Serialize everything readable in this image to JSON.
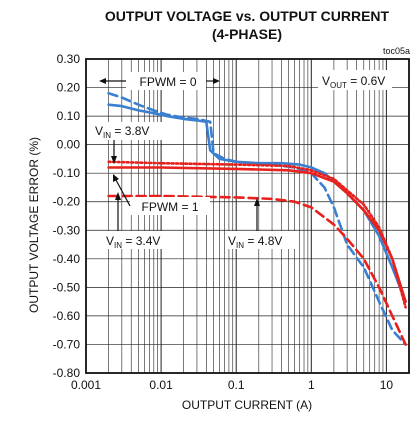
{
  "chart_data": {
    "type": "line",
    "title": "OUTPUT VOLTAGE vs. OUTPUT CURRENT",
    "subtitle": "(4-PHASE)",
    "figure_code": "toc05a",
    "xlabel": "OUTPUT CURRENT  (A)",
    "ylabel": "OUTPUT VOLTAGE  ERROR  (%)",
    "x_scale": "log",
    "xlim": [
      0.001,
      20
    ],
    "ylim": [
      -0.8,
      0.3
    ],
    "x_ticks": [
      {
        "value": 0.001,
        "label": "0.001"
      },
      {
        "value": 0.01,
        "label": "0.01"
      },
      {
        "value": 0.1,
        "label": "0.1"
      },
      {
        "value": 1,
        "label": "1"
      },
      {
        "value": 10,
        "label": "10"
      }
    ],
    "y_ticks": [
      {
        "value": 0.3,
        "label": "0.30"
      },
      {
        "value": 0.2,
        "label": "0.20"
      },
      {
        "value": 0.1,
        "label": "0.10"
      },
      {
        "value": 0.0,
        "label": "0.00"
      },
      {
        "value": -0.1,
        "label": "-0.10"
      },
      {
        "value": -0.2,
        "label": "-0.20"
      },
      {
        "value": -0.3,
        "label": "-0.30"
      },
      {
        "value": -0.4,
        "label": "-0.40"
      },
      {
        "value": -0.5,
        "label": "-0.50"
      },
      {
        "value": -0.6,
        "label": "-0.60"
      },
      {
        "value": -0.7,
        "label": "-0.70"
      },
      {
        "value": -0.8,
        "label": "-0.80"
      }
    ],
    "grid": true,
    "colors": {
      "blue": "#3a7fd0",
      "red": "#e8211c"
    },
    "annotations": {
      "fpwm0": "FPWM = 0",
      "fpwm1": "FPWM = 1",
      "vout": {
        "main": "V",
        "sub": "OUT",
        "rest": " = 0.6V"
      },
      "vin38": {
        "main": "V",
        "sub": "IN",
        "rest": " = 3.8V"
      },
      "vin34": {
        "main": "V",
        "sub": "IN",
        "rest": " = 3.4V"
      },
      "vin48": {
        "main": "V",
        "sub": "IN",
        "rest": " = 4.8V"
      }
    },
    "series": [
      {
        "color": "#3a7fd0",
        "dash": "solid",
        "points": [
          [
            0.002,
            0.14
          ],
          [
            0.003,
            0.135
          ],
          [
            0.005,
            0.12
          ],
          [
            0.008,
            0.11
          ],
          [
            0.012,
            0.1
          ],
          [
            0.02,
            0.09
          ],
          [
            0.03,
            0.085
          ],
          [
            0.04,
            0.08
          ],
          [
            0.045,
            -0.02
          ],
          [
            0.06,
            -0.05
          ],
          [
            0.1,
            -0.06
          ],
          [
            0.2,
            -0.065
          ],
          [
            0.4,
            -0.065
          ],
          [
            0.7,
            -0.07
          ],
          [
            1.0,
            -0.08
          ],
          [
            1.5,
            -0.1
          ],
          [
            2.0,
            -0.13
          ],
          [
            3.0,
            -0.17
          ],
          [
            5.0,
            -0.23
          ],
          [
            8.0,
            -0.32
          ],
          [
            12.0,
            -0.43
          ],
          [
            18.0,
            -0.55
          ]
        ]
      },
      {
        "color": "#3a7fd0",
        "dash": "dashed",
        "points": [
          [
            0.002,
            0.18
          ],
          [
            0.003,
            0.165
          ],
          [
            0.005,
            0.14
          ],
          [
            0.008,
            0.12
          ],
          [
            0.012,
            0.105
          ],
          [
            0.02,
            0.095
          ],
          [
            0.03,
            0.09
          ],
          [
            0.045,
            0.08
          ],
          [
            0.05,
            -0.03
          ],
          [
            0.07,
            -0.05
          ],
          [
            0.1,
            -0.06
          ],
          [
            0.3,
            -0.07
          ],
          [
            0.6,
            -0.08
          ],
          [
            1.0,
            -0.1
          ],
          [
            1.5,
            -0.15
          ],
          [
            2.0,
            -0.22
          ],
          [
            3.0,
            -0.35
          ],
          [
            5.0,
            -0.43
          ],
          [
            8.0,
            -0.55
          ],
          [
            12.0,
            -0.65
          ],
          [
            18.0,
            -0.7
          ]
        ]
      },
      {
        "color": "#e8211c",
        "dash": "solid",
        "points": [
          [
            0.002,
            -0.08
          ],
          [
            0.01,
            -0.08
          ],
          [
            0.1,
            -0.085
          ],
          [
            0.5,
            -0.09
          ],
          [
            1.0,
            -0.1
          ],
          [
            2.0,
            -0.13
          ],
          [
            3.0,
            -0.17
          ],
          [
            5.0,
            -0.23
          ],
          [
            8.0,
            -0.3
          ],
          [
            12.0,
            -0.4
          ],
          [
            18.0,
            -0.55
          ]
        ]
      },
      {
        "color": "#e8211c",
        "dash": "dotted",
        "points": [
          [
            0.002,
            -0.06
          ],
          [
            0.01,
            -0.065
          ],
          [
            0.1,
            -0.07
          ],
          [
            0.5,
            -0.075
          ],
          [
            1.0,
            -0.09
          ],
          [
            2.0,
            -0.12
          ],
          [
            3.0,
            -0.16
          ],
          [
            5.0,
            -0.21
          ],
          [
            8.0,
            -0.29
          ],
          [
            12.0,
            -0.4
          ],
          [
            18.0,
            -0.57
          ]
        ]
      },
      {
        "color": "#e8211c",
        "dash": "dashed",
        "points": [
          [
            0.002,
            -0.18
          ],
          [
            0.01,
            -0.18
          ],
          [
            0.1,
            -0.185
          ],
          [
            0.3,
            -0.19
          ],
          [
            0.6,
            -0.2
          ],
          [
            1.0,
            -0.22
          ],
          [
            2.0,
            -0.28
          ],
          [
            3.0,
            -0.33
          ],
          [
            5.0,
            -0.4
          ],
          [
            8.0,
            -0.5
          ],
          [
            12.0,
            -0.6
          ],
          [
            18.0,
            -0.7
          ]
        ]
      }
    ]
  }
}
